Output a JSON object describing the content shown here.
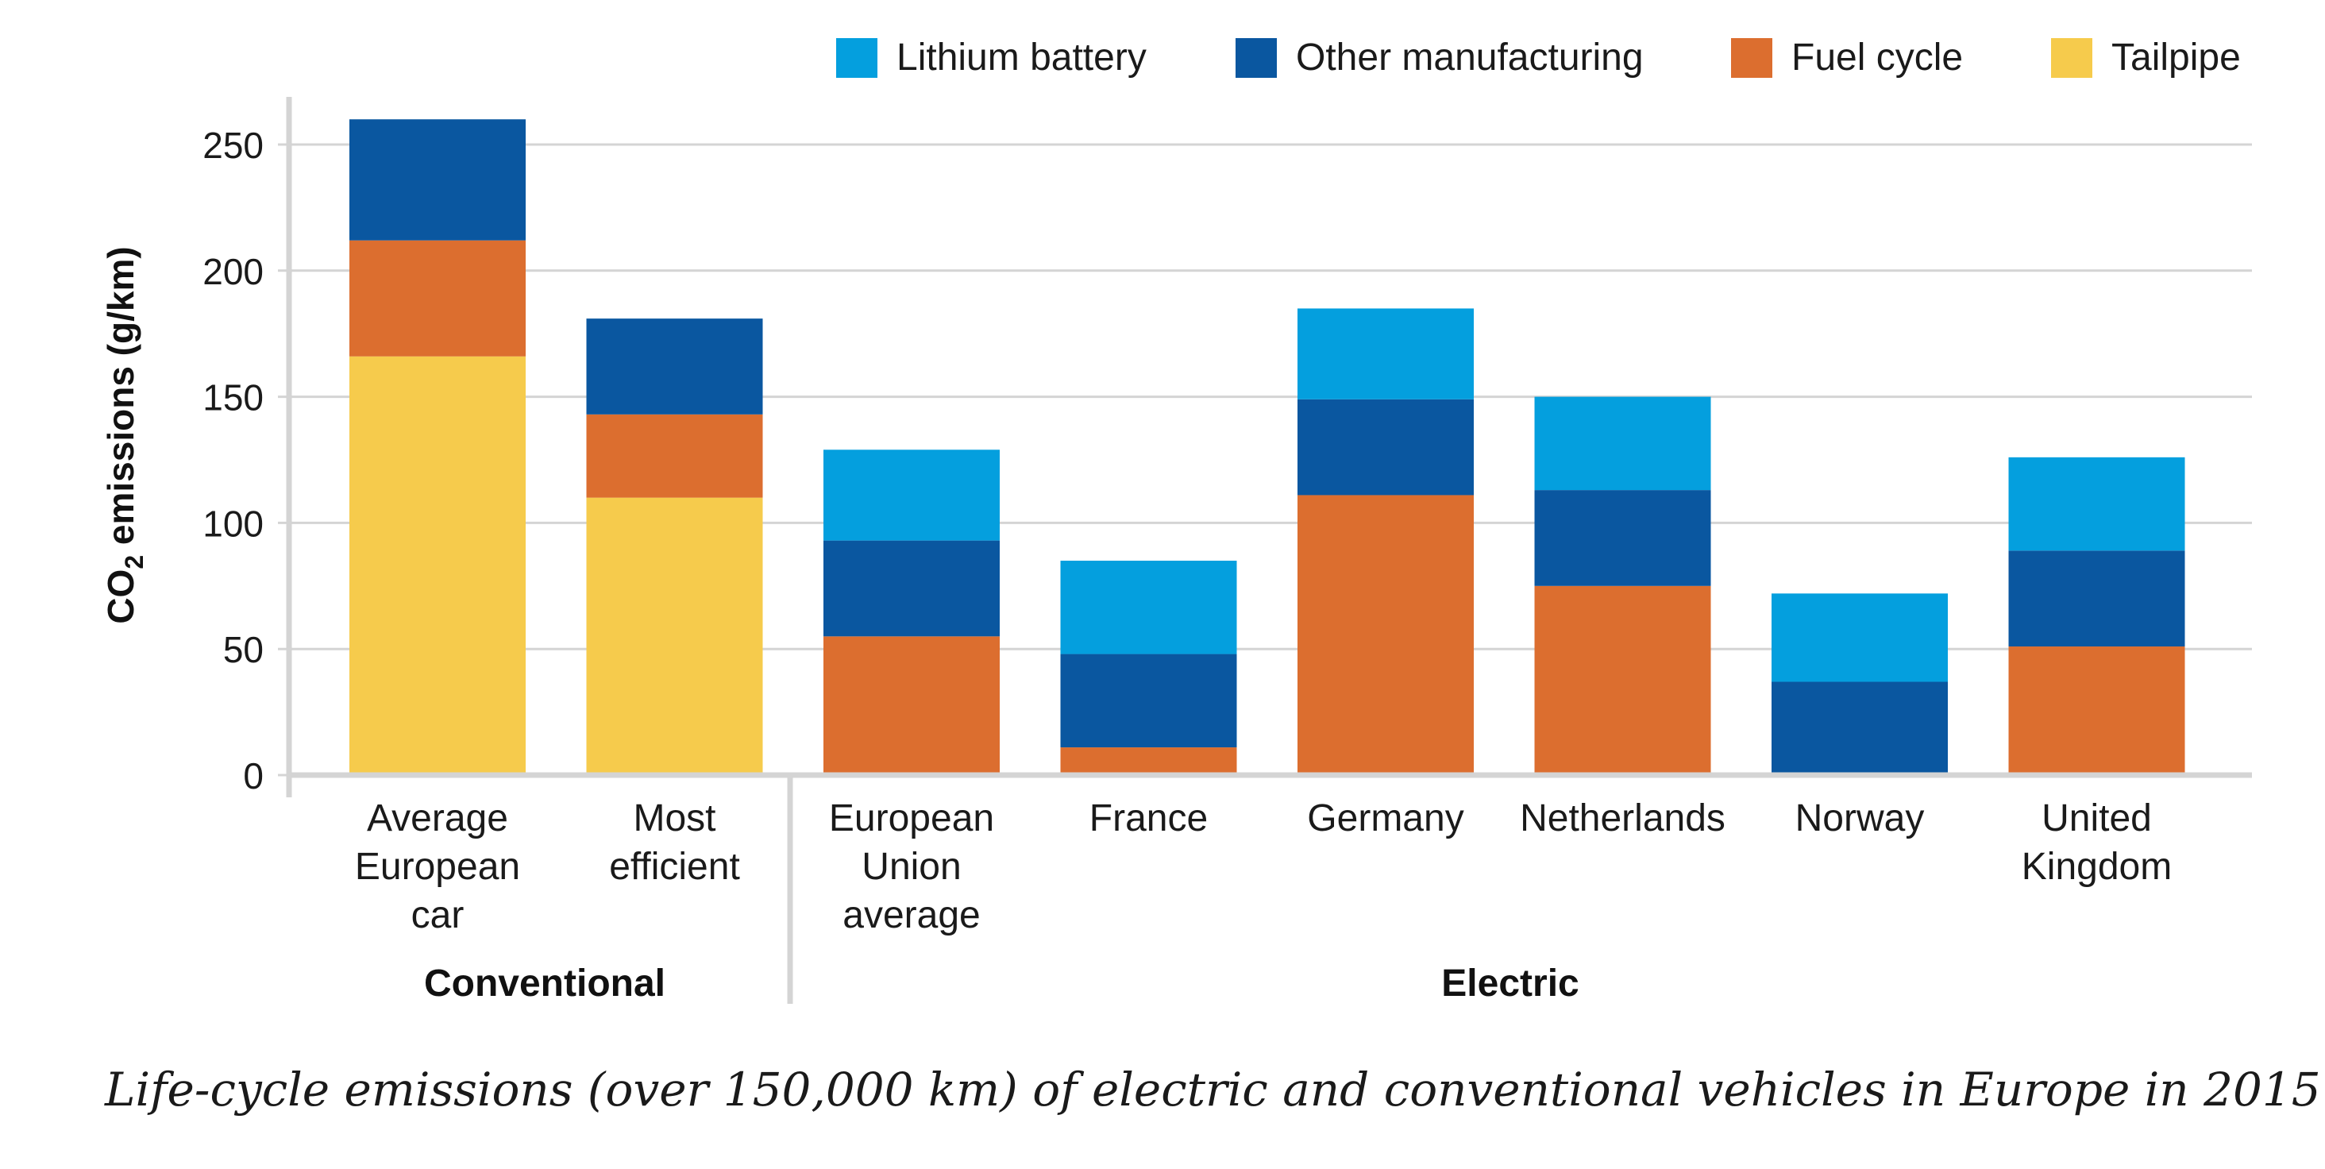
{
  "chart_data": {
    "type": "bar",
    "stacked": true,
    "ylabel": "CO2 emissions (g/km)",
    "ylabel_parts": [
      "CO",
      "2",
      " emissions (g/km)"
    ],
    "ylim": [
      0,
      260
    ],
    "yticks": [
      0,
      50,
      100,
      150,
      200,
      250
    ],
    "grid": true,
    "legend_position": "top-right",
    "categories": [
      [
        "Average",
        "European",
        "car"
      ],
      [
        "Most",
        "efficient"
      ],
      [
        "European",
        "Union",
        "average"
      ],
      [
        "France"
      ],
      [
        "Germany"
      ],
      [
        "Netherlands"
      ],
      [
        "Norway"
      ],
      [
        "United",
        "Kingdom"
      ]
    ],
    "groups": [
      {
        "label": "Conventional",
        "categories": [
          0,
          1
        ]
      },
      {
        "label": "Electric",
        "categories": [
          2,
          3,
          4,
          5,
          6,
          7
        ]
      }
    ],
    "series": [
      {
        "name": "Tailpipe",
        "color": "#F6CB4C",
        "values": [
          166,
          110,
          0,
          0,
          0,
          0,
          0,
          0
        ]
      },
      {
        "name": "Fuel cycle",
        "color": "#DC6E2F",
        "values": [
          46,
          33,
          55,
          11,
          111,
          75,
          0,
          51
        ]
      },
      {
        "name": "Other manufacturing",
        "color": "#0A57A0",
        "values": [
          48,
          38,
          38,
          37,
          38,
          38,
          37,
          38
        ]
      },
      {
        "name": "Lithium battery",
        "color": "#049FDE",
        "values": [
          0,
          0,
          36,
          37,
          36,
          37,
          35,
          37
        ]
      }
    ],
    "legend_order": [
      "Lithium battery",
      "Other manufacturing",
      "Fuel cycle",
      "Tailpipe"
    ]
  },
  "caption": "Life-cycle emissions (over 150,000 km) of electric and conventional vehicles in Europe in 2015."
}
